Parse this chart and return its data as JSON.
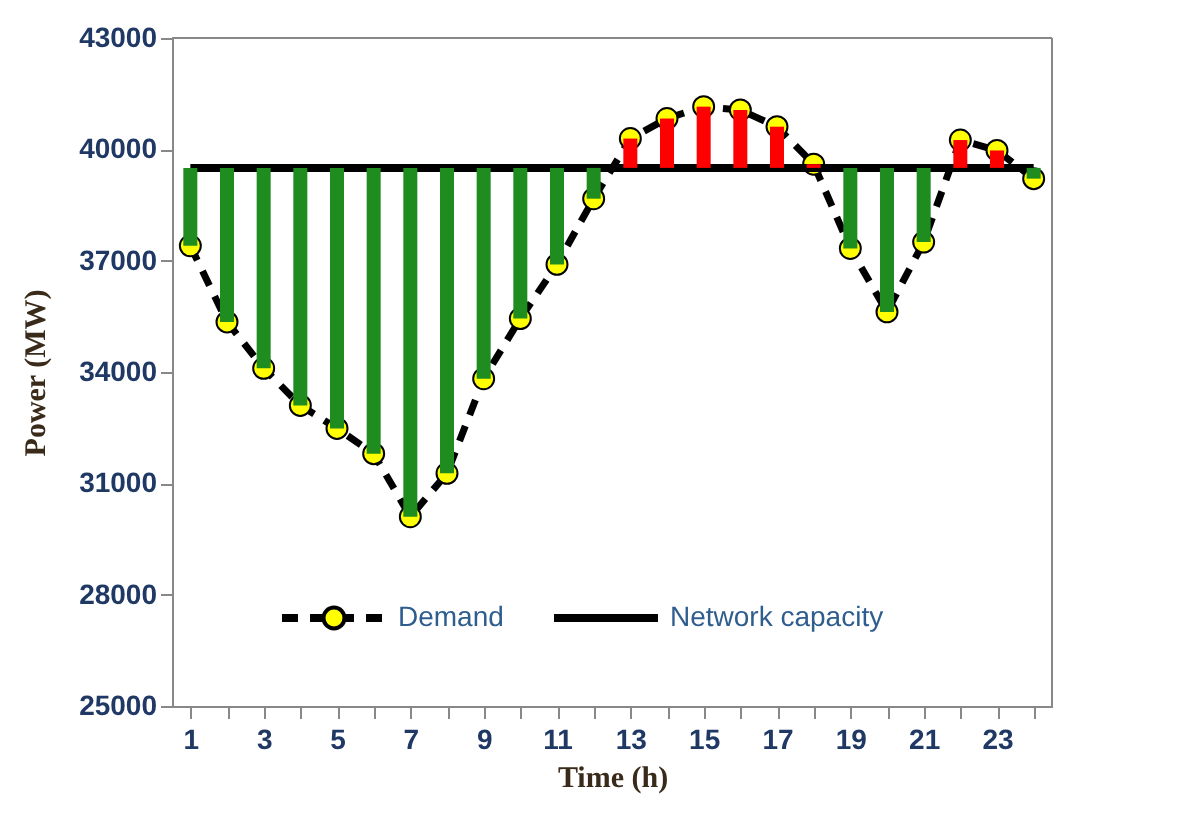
{
  "chart_data": {
    "type": "line",
    "xlabel": "Time (h)",
    "ylabel": "Power (MW)",
    "x": [
      1,
      2,
      3,
      4,
      5,
      6,
      7,
      8,
      9,
      10,
      11,
      12,
      13,
      14,
      15,
      16,
      17,
      18,
      19,
      20,
      21,
      22,
      23,
      24
    ],
    "xlim": [
      0.5,
      24.5
    ],
    "xticks": [
      1,
      {
        "value": 2,
        "label": null
      },
      3,
      {
        "value": 4,
        "label": null
      },
      5,
      {
        "value": 6,
        "label": null
      },
      7,
      {
        "value": 8,
        "label": null
      },
      9,
      {
        "value": 10,
        "label": null
      },
      11,
      {
        "value": 12,
        "label": null
      },
      13,
      {
        "value": 14,
        "label": null
      },
      15,
      {
        "value": 16,
        "label": null
      },
      17,
      {
        "value": 18,
        "label": null
      },
      19,
      {
        "value": 20,
        "label": null
      },
      21,
      {
        "value": 22,
        "label": null
      },
      23,
      {
        "value": 24,
        "label": null
      }
    ],
    "ylim": [
      25000,
      43000
    ],
    "yticks": [
      25000,
      28000,
      31000,
      34000,
      37000,
      40000,
      43000
    ],
    "grid": false,
    "legend": "bottom",
    "series": [
      {
        "name": "Demand",
        "color": "#ffff00",
        "marker": "circle",
        "line_style": "dashed",
        "values": [
          37400,
          35350,
          34100,
          33100,
          32480,
          31800,
          30100,
          31270,
          33820,
          35440,
          36900,
          38670,
          40290,
          40830,
          41150,
          41060,
          40610,
          39600,
          37330,
          35620,
          37500,
          40250,
          39970,
          39210
        ]
      },
      {
        "name": "Network capacity",
        "color": "#000000",
        "line_style": "solid",
        "values": [
          39500,
          39500,
          39500,
          39500,
          39500,
          39500,
          39500,
          39500,
          39500,
          39500,
          39500,
          39500,
          39500,
          39500,
          39500,
          39500,
          39500,
          39500,
          39500,
          39500,
          39500,
          39500,
          39500,
          39500
        ]
      },
      {
        "type": "bar",
        "base": [
          39500,
          39500,
          39500,
          39500,
          39500,
          39500,
          39500,
          39500,
          39500,
          39500,
          39500,
          39500,
          39500,
          39500,
          39500,
          39500,
          39500,
          39500,
          39500,
          39500,
          39500,
          39500,
          39500,
          39500
        ],
        "values": [
          -2100,
          -4150,
          -5400,
          -6400,
          -7020,
          -7700,
          -9400,
          -8230,
          -5680,
          -4060,
          -2600,
          -830,
          790,
          1330,
          1650,
          1560,
          1110,
          100,
          -2170,
          -3880,
          -2000,
          750,
          470,
          -290
        ],
        "colors": [
          "#1e8c1e",
          "#1e8c1e",
          "#1e8c1e",
          "#1e8c1e",
          "#1e8c1e",
          "#1e8c1e",
          "#1e8c1e",
          "#1e8c1e",
          "#1e8c1e",
          "#1e8c1e",
          "#1e8c1e",
          "#1e8c1e",
          "#ff0000",
          "#ff0000",
          "#ff0000",
          "#ff0000",
          "#ff0000",
          "#ff0000",
          "#1e8c1e",
          "#1e8c1e",
          "#1e8c1e",
          "#ff0000",
          "#ff0000",
          "#1e8c1e"
        ]
      }
    ]
  }
}
